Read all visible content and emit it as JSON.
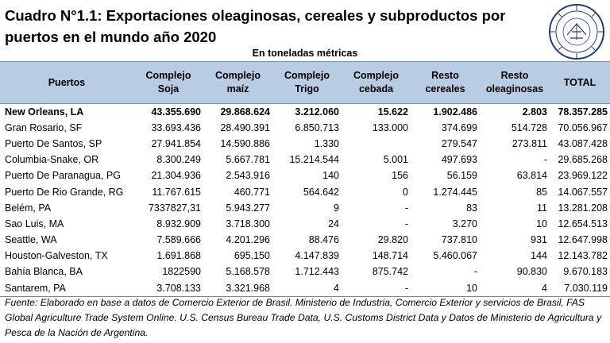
{
  "title": "Cuadro N°1.1: Exportaciones oleaginosas, cereales y subproductos por puertos en el mundo año 2020",
  "subtitle": "En toneladas métricas",
  "seal_icon": "camara-de-comercio-de-rosario-seal",
  "table": {
    "headers": [
      "Puertos",
      "Complejo Soja",
      "Complejo maíz",
      "Complejo Trigo",
      "Complejo cebada",
      "Resto cereales",
      "Resto oleaginosas",
      "TOTAL"
    ],
    "rows": [
      [
        "New Orleans, LA",
        "43.355.690",
        "29.868.624",
        "3.212.060",
        "15.622",
        "1.902.486",
        "2.803",
        "78.357.285"
      ],
      [
        "Gran Rosario, SF",
        "33.693.436",
        "28.490.391",
        "6.850.713",
        "133.000",
        "374.699",
        "514.728",
        "70.056.967"
      ],
      [
        "Puerto De Santos, SP",
        "27.941.854",
        "14.590.886",
        "1.330",
        "",
        "279.547",
        "273.811",
        "43.087.428"
      ],
      [
        "Columbia-Snake, OR",
        "8.300.249",
        "5.667.781",
        "15.214.544",
        "5.001",
        "497.693",
        "-",
        "29.685.268"
      ],
      [
        "Puerto De Paranagua, PG",
        "21.304.936",
        "2.543.916",
        "140",
        "156",
        "56.159",
        "63.814",
        "23.969.122"
      ],
      [
        "Puerto De Rio Grande, RG",
        "11.767.615",
        "460.771",
        "564.642",
        "0",
        "1.274.445",
        "85",
        "14.067.557"
      ],
      [
        "Belém, PA",
        "7337827,31",
        "5.943.277",
        "9",
        "-",
        "83",
        "11",
        "13.281.208"
      ],
      [
        "Sao Luis, MA",
        "8.932.909",
        "3.718.300",
        "24",
        "-",
        "3.270",
        "10",
        "12.654.513"
      ],
      [
        "Seattle, WA",
        "7.589.666",
        "4.201.296",
        "88.476",
        "29.820",
        "737.810",
        "931",
        "12.647.998"
      ],
      [
        "Houston-Galveston, TX",
        "1.691.868",
        "695.150",
        "4.147.839",
        "148.714",
        "5.460.067",
        "144",
        "12.143.782"
      ],
      [
        "Bahía Blanca, BA",
        "1822590",
        "5.168.578",
        "1.712.443",
        "875.742",
        "-",
        "90.830",
        "9.670.183"
      ],
      [
        "Santarem, PA",
        "3.708.133",
        "3.321.968",
        "4",
        "-",
        "10",
        "4",
        "7.030.119"
      ]
    ]
  },
  "source": "Fuente: Elaborado en base a datos de Comercio Exterior de Brasil. Ministerio de Industria, Comercio Exterior y servicios de Brasil, FAS Global Agriculture Trade System Online. U.S. Census Bureau Trade Data, U.S. Customs District Data y Datos de Ministerio de Agricultura y Pesca de la Nación de Argentina."
}
